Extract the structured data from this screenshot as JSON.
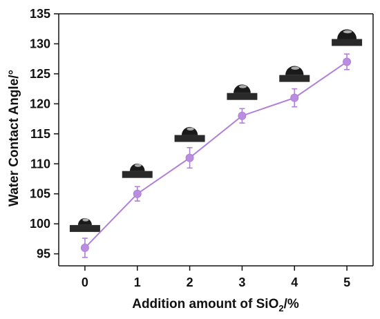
{
  "chart_data": {
    "type": "line",
    "xlabel_parts": [
      "Addition amount of SiO",
      "2",
      "/%"
    ],
    "ylabel": "Water Contact Angle/°",
    "x": [
      0,
      1,
      2,
      3,
      4,
      5
    ],
    "x_tick_labels": [
      "0",
      "1",
      "2",
      "3",
      "4",
      "5"
    ],
    "xlim": [
      -0.5,
      5.5
    ],
    "y_tick_labels": [
      "95",
      "100",
      "105",
      "110",
      "115",
      "120",
      "125",
      "130",
      "135"
    ],
    "ylim": [
      93,
      135
    ],
    "grid": false,
    "legend": "none",
    "series": [
      {
        "values": [
          96,
          105,
          111,
          118,
          121,
          127
        ],
        "errors": [
          1.6,
          1.2,
          1.7,
          1.2,
          1.5,
          1.3
        ],
        "color": "#b07fd8",
        "marker_fill": "#b98ee0"
      }
    ],
    "annotations": "water droplet photos above each point",
    "colors": {
      "axis": "#111111",
      "droplet": "#1a1a1a",
      "substrate": "#2a2a2a"
    }
  }
}
